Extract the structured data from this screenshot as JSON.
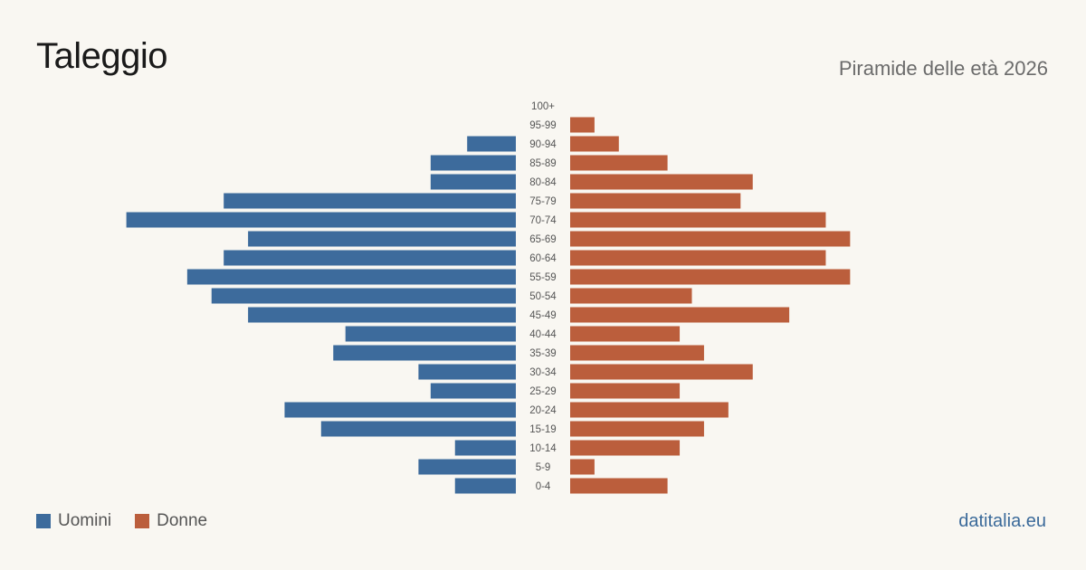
{
  "header": {
    "title": "Taleggio",
    "subtitle": "Piramide delle età 2026"
  },
  "legend": {
    "male_label": "Uomini",
    "female_label": "Donne"
  },
  "footer": {
    "source": "datitalia.eu"
  },
  "colors": {
    "male": "#3d6b9c",
    "female": "#bb5e3c",
    "background": "#f9f7f2"
  },
  "chart_data": {
    "type": "bar",
    "orientation": "horizontal-pyramid",
    "categories": [
      "100+",
      "95-99",
      "90-94",
      "85-89",
      "80-84",
      "75-79",
      "70-74",
      "65-69",
      "60-64",
      "55-59",
      "50-54",
      "45-49",
      "40-44",
      "35-39",
      "30-34",
      "25-29",
      "20-24",
      "15-19",
      "10-14",
      "5-9",
      "0-4"
    ],
    "series": [
      {
        "name": "Uomini",
        "values": [
          0,
          0,
          4,
          7,
          7,
          24,
          32,
          22,
          24,
          27,
          25,
          22,
          14,
          15,
          8,
          7,
          19,
          16,
          5,
          8,
          5
        ]
      },
      {
        "name": "Donne",
        "values": [
          0,
          2,
          4,
          8,
          15,
          14,
          21,
          23,
          21,
          23,
          10,
          18,
          9,
          11,
          15,
          9,
          13,
          11,
          9,
          2,
          8
        ]
      }
    ],
    "legend_position": "bottom-left",
    "grid": false
  }
}
